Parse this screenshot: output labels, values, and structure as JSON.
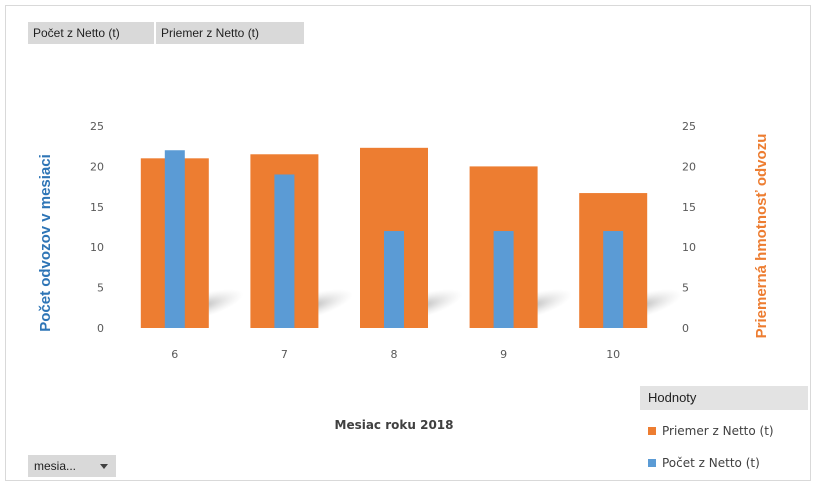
{
  "pivot_buttons": {
    "count_label": "Počet z  Netto (t)",
    "average_label": "Priemer z Netto (t)"
  },
  "legend": {
    "title": "Hodnoty",
    "items": [
      {
        "label": "Priemer z Netto (t)",
        "color": "#ED7D31"
      },
      {
        "label": "Počet z Netto (t)",
        "color": "#5B9BD5"
      }
    ]
  },
  "filter": {
    "label": "mesia..."
  },
  "chart_data": {
    "type": "bar",
    "categories": [
      "6",
      "7",
      "8",
      "9",
      "10"
    ],
    "series": [
      {
        "name": "Priemer z Netto (t)",
        "axis": "secondary",
        "color": "#ED7D31",
        "values": [
          21,
          21.5,
          22.3,
          20,
          16.7
        ]
      },
      {
        "name": "Počet z Netto (t)",
        "axis": "primary",
        "color": "#5B9BD5",
        "values": [
          22,
          19,
          12,
          12,
          12
        ]
      }
    ],
    "xlabel": "Mesiac roku 2018",
    "ylabel": "Počet odvozov v mesiaci",
    "y2label": "Priemerná hmotnosť odvozu",
    "ylim": [
      0,
      25
    ],
    "y2lim": [
      0,
      25
    ],
    "yticks": [
      "0",
      "5",
      "10",
      "15",
      "20",
      "25"
    ],
    "y2ticks": [
      "0",
      "5",
      "10",
      "15",
      "20",
      "25"
    ],
    "ylabel_color": "#2E75B6",
    "y2label_color": "#ED7D31",
    "grid": false,
    "legend_position": "bottom-right"
  }
}
